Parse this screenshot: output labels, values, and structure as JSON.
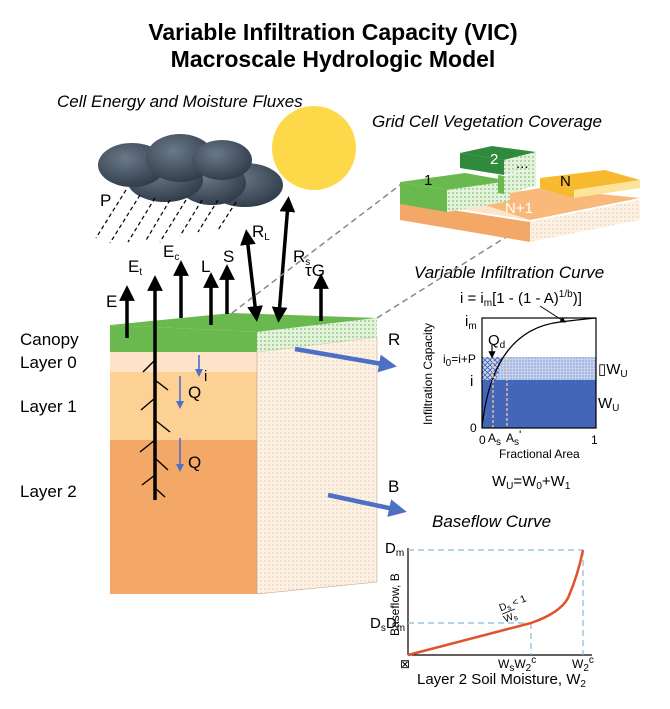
{
  "title": {
    "line1": "Variable Infiltration Capacity (VIC)",
    "line2": "Macroscale Hydrologic Model"
  },
  "cell_fluxes": {
    "heading": "Cell Energy and Moisture Fluxes",
    "precip": "P",
    "flux_E": "E",
    "flux_Et": "E",
    "flux_Et_sub": "t",
    "flux_Ec": "E",
    "flux_Ec_sub": "c",
    "flux_L": "L",
    "flux_S": "S",
    "flux_RL": "R",
    "flux_RL_sub": "L",
    "flux_Rs": "R",
    "flux_Rs_sub": "s",
    "flux_tauG": "τG"
  },
  "soil_column": {
    "canopy": "Canopy",
    "layer0": "Layer 0",
    "layer1": "Layer 1",
    "layer2": "Layer 2",
    "infiltration": "i",
    "flow_q1": "Q",
    "flow_q2": "Q",
    "runoff": "R",
    "baseflow": "B"
  },
  "vegetation": {
    "heading": "Grid Cell Vegetation Coverage",
    "tile1": "1",
    "tile2": "2",
    "tile_dots": "...",
    "tileN": "N",
    "tileN1": "N+1"
  },
  "infiltration_curve": {
    "heading": "Variable Infiltration Curve",
    "equation": "i = i",
    "equation_sub": "m",
    "equation_rest": "[1 - (1 - A)",
    "equation_sup": "1/b",
    "equation_end": ")]",
    "ylabel": "Infiltration Capacity",
    "xlabel": "Fractional Area",
    "im": "i",
    "im_sub": "m",
    "i0": "i",
    "i0_sub": "0",
    "i0_rest": "=i+P",
    "i_label": "i",
    "qd": "Q",
    "qd_sub": "d",
    "dwu": "▯W",
    "dwu_sub": "U",
    "wu": "W",
    "wu_sub": "U",
    "x0": "0",
    "y0": "0",
    "x1": "1",
    "as": "A",
    "as_sub": "s",
    "as2": "A",
    "as2_sub": "s",
    "as2_sup": "'",
    "balance": "W",
    "balance_sub1": "U",
    "balance_mid": "=W",
    "balance_sub2": "0",
    "balance_mid2": "+W",
    "balance_sub3": "1"
  },
  "baseflow_curve": {
    "heading": "Baseflow Curve",
    "ylabel": "Baseflow, B",
    "xlabel": "Layer 2 Soil Moisture, W",
    "xlabel_sub": "2",
    "dm": "D",
    "dm_sub": "m",
    "dsdm": "D",
    "dsdm_sub1": "s",
    "dsdm_mid": "D",
    "dsdm_sub2": "m",
    "origin": "⊠",
    "wsw2c": "W",
    "wsw2c_sub1": "s",
    "wsw2c_mid": "W",
    "wsw2c_sub2": "2",
    "wsw2c_sup": "c",
    "w2c": "W",
    "w2c_sub": "2",
    "w2c_sup": "c",
    "slope_top": "D",
    "slope_top_sub": "s",
    "slope_lt": " < 1",
    "slope_bot": "W",
    "slope_bot_sub": "s"
  },
  "colors": {
    "canopy_green": "#69b94f",
    "layer0": "#fde3c8",
    "layer1": "#fdd193",
    "layer2": "#f3a868",
    "water_blue": "#4466b9",
    "sun": "#fdd94a",
    "cloud": "#3f4d5c",
    "curve_red": "#e0522a",
    "arrow_blue": "#4d6fc4"
  }
}
